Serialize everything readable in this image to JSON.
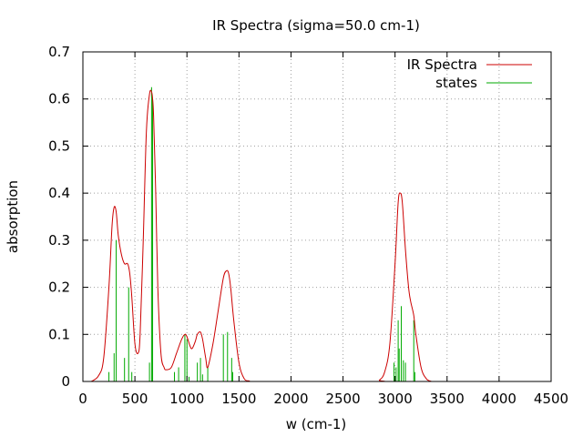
{
  "chart_data": {
    "type": "line",
    "title": "IR Spectra (sigma=50.0 cm-1)",
    "xlabel": "w (cm-1)",
    "ylabel": "absorption",
    "xlim": [
      0,
      4500
    ],
    "ylim": [
      0,
      0.7
    ],
    "xticks": [
      0,
      500,
      1000,
      1500,
      2000,
      2500,
      3000,
      3500,
      4000,
      4500
    ],
    "yticks": [
      0,
      0.1,
      0.2,
      0.3,
      0.4,
      0.5,
      0.6,
      0.7
    ],
    "xtick_labels": [
      "0",
      "500",
      "1000",
      "1500",
      "2000",
      "2500",
      "3000",
      "3500",
      "4000",
      "4500"
    ],
    "ytick_labels": [
      "0",
      "0.1",
      "0.2",
      "0.3",
      "0.4",
      "0.5",
      "0.6",
      "0.7"
    ],
    "grid": true,
    "legend_position": "top-right",
    "series": [
      {
        "name": "IR Spectra",
        "color": "#cc0000",
        "style": "line",
        "x": [
          80,
          150,
          200,
          250,
          280,
          300,
          320,
          340,
          370,
          400,
          430,
          450,
          470,
          500,
          530,
          550,
          580,
          610,
          640,
          660,
          670,
          680,
          700,
          720,
          750,
          780,
          800,
          850,
          900,
          950,
          980,
          1000,
          1030,
          1050,
          1080,
          1100,
          1130,
          1150,
          1180,
          1200,
          1250,
          1300,
          1350,
          1380,
          1400,
          1420,
          1450,
          1500,
          1550,
          1600,
          1650,
          2800,
          2850,
          2900,
          2950,
          3000,
          3030,
          3050,
          3070,
          3100,
          3130,
          3150,
          3180,
          3200,
          3250,
          3300,
          3350
        ],
        "y": [
          0,
          0.012,
          0.05,
          0.2,
          0.33,
          0.37,
          0.36,
          0.31,
          0.27,
          0.25,
          0.25,
          0.23,
          0.18,
          0.08,
          0.06,
          0.1,
          0.3,
          0.53,
          0.61,
          0.615,
          0.6,
          0.56,
          0.4,
          0.2,
          0.06,
          0.03,
          0.025,
          0.03,
          0.06,
          0.09,
          0.1,
          0.095,
          0.075,
          0.07,
          0.085,
          0.1,
          0.105,
          0.09,
          0.05,
          0.03,
          0.08,
          0.15,
          0.22,
          0.235,
          0.23,
          0.2,
          0.13,
          0.04,
          0.006,
          0.001,
          0,
          0,
          0.003,
          0.02,
          0.08,
          0.25,
          0.38,
          0.4,
          0.38,
          0.28,
          0.2,
          0.17,
          0.14,
          0.1,
          0.03,
          0.006,
          0
        ]
      },
      {
        "name": "states",
        "color": "#00aa00",
        "style": "impulse",
        "x": [
          250,
          300,
          320,
          400,
          440,
          470,
          640,
          660,
          670,
          880,
          920,
          980,
          1000,
          1020,
          1100,
          1130,
          1150,
          1200,
          1350,
          1390,
          1430,
          1440,
          2990,
          3010,
          3030,
          3040,
          3060,
          3080,
          3100,
          3180,
          3190
        ],
        "y": [
          0.02,
          0.06,
          0.3,
          0.05,
          0.2,
          0.02,
          0.04,
          0.625,
          0.6,
          0.02,
          0.03,
          0.1,
          0.09,
          0.01,
          0.04,
          0.05,
          0.015,
          0.03,
          0.1,
          0.105,
          0.05,
          0.02,
          0.04,
          0.03,
          0.13,
          0.07,
          0.16,
          0.045,
          0.04,
          0.13,
          0.02
        ]
      }
    ]
  }
}
